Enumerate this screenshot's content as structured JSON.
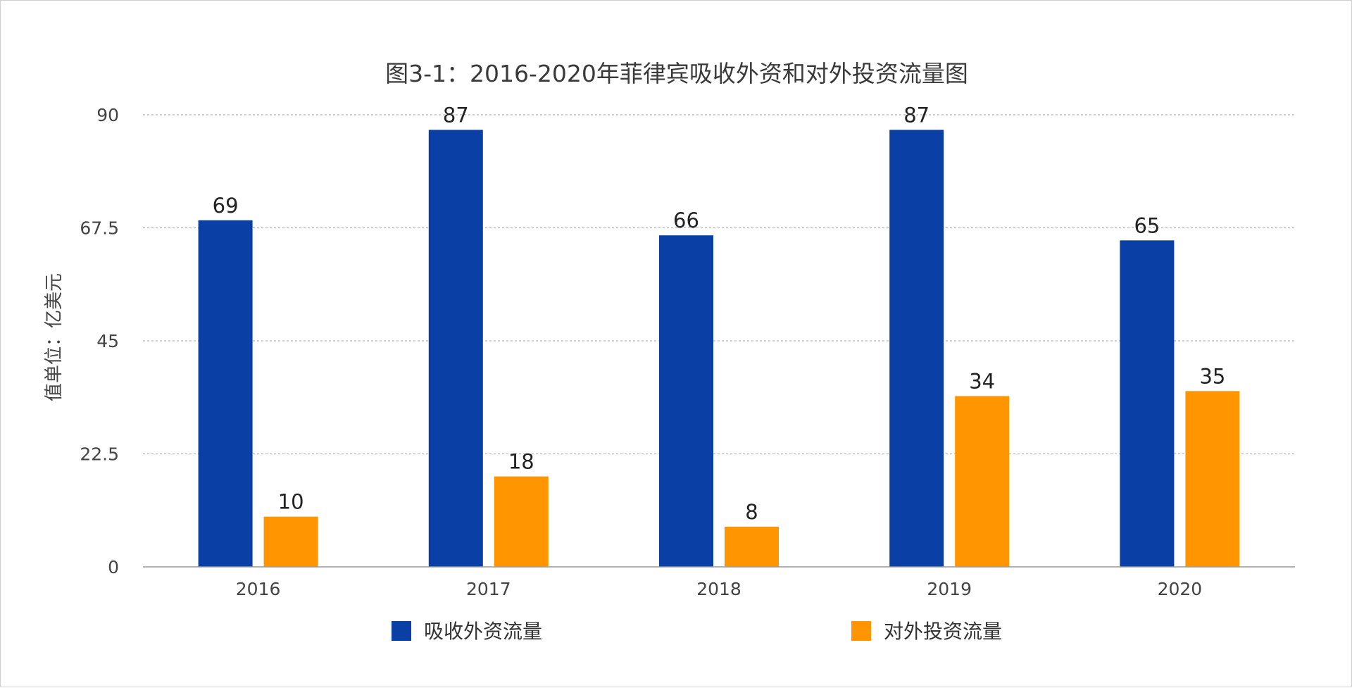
{
  "chart_data": {
    "type": "bar",
    "title": "图3-1：2016-2020年菲律宾吸收外资和对外投资流量图",
    "xlabel": "",
    "ylabel": "值单位：亿美元",
    "categories": [
      "2016",
      "2017",
      "2018",
      "2019",
      "2020"
    ],
    "series": [
      {
        "name": "吸收外资流量",
        "color": "#0a3fa6",
        "values": [
          69,
          87,
          66,
          87,
          65
        ]
      },
      {
        "name": "对外投资流量",
        "color": "#ff9500",
        "values": [
          10,
          18,
          8,
          34,
          35
        ]
      }
    ],
    "ylim": [
      0,
      90
    ],
    "yticks": [
      "0",
      "22.5",
      "45",
      "67.5",
      "90"
    ],
    "grid": true,
    "legend": "bottom"
  }
}
